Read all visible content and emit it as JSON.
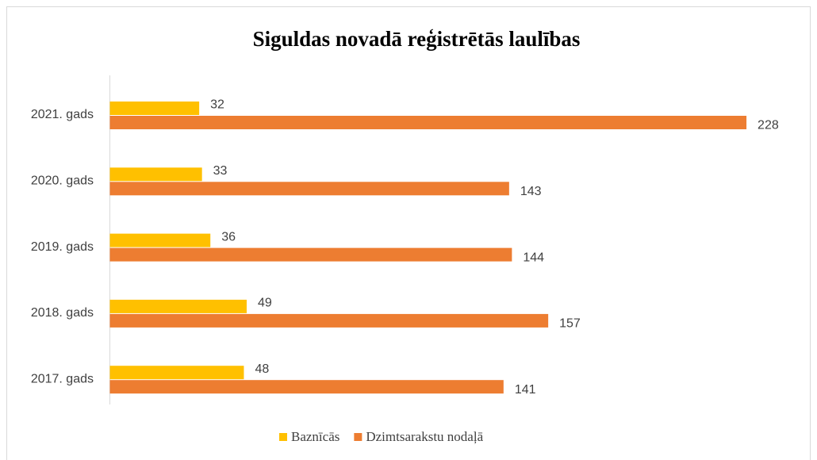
{
  "chart_data": {
    "type": "bar",
    "orientation": "horizontal",
    "title": "Siguldas novadā reģistrētās laulības",
    "categories": [
      "2021. gads",
      "2020. gads",
      "2019. gads",
      "2018. gads",
      "2017. gads"
    ],
    "series": [
      {
        "name": "Baznīcās",
        "color": "#ffc000",
        "values": [
          32,
          33,
          36,
          49,
          48
        ]
      },
      {
        "name": "Dzimtsarakstu nodaļā",
        "color": "#ed7d31",
        "values": [
          228,
          143,
          144,
          157,
          141
        ]
      }
    ],
    "legend": "bottom"
  }
}
